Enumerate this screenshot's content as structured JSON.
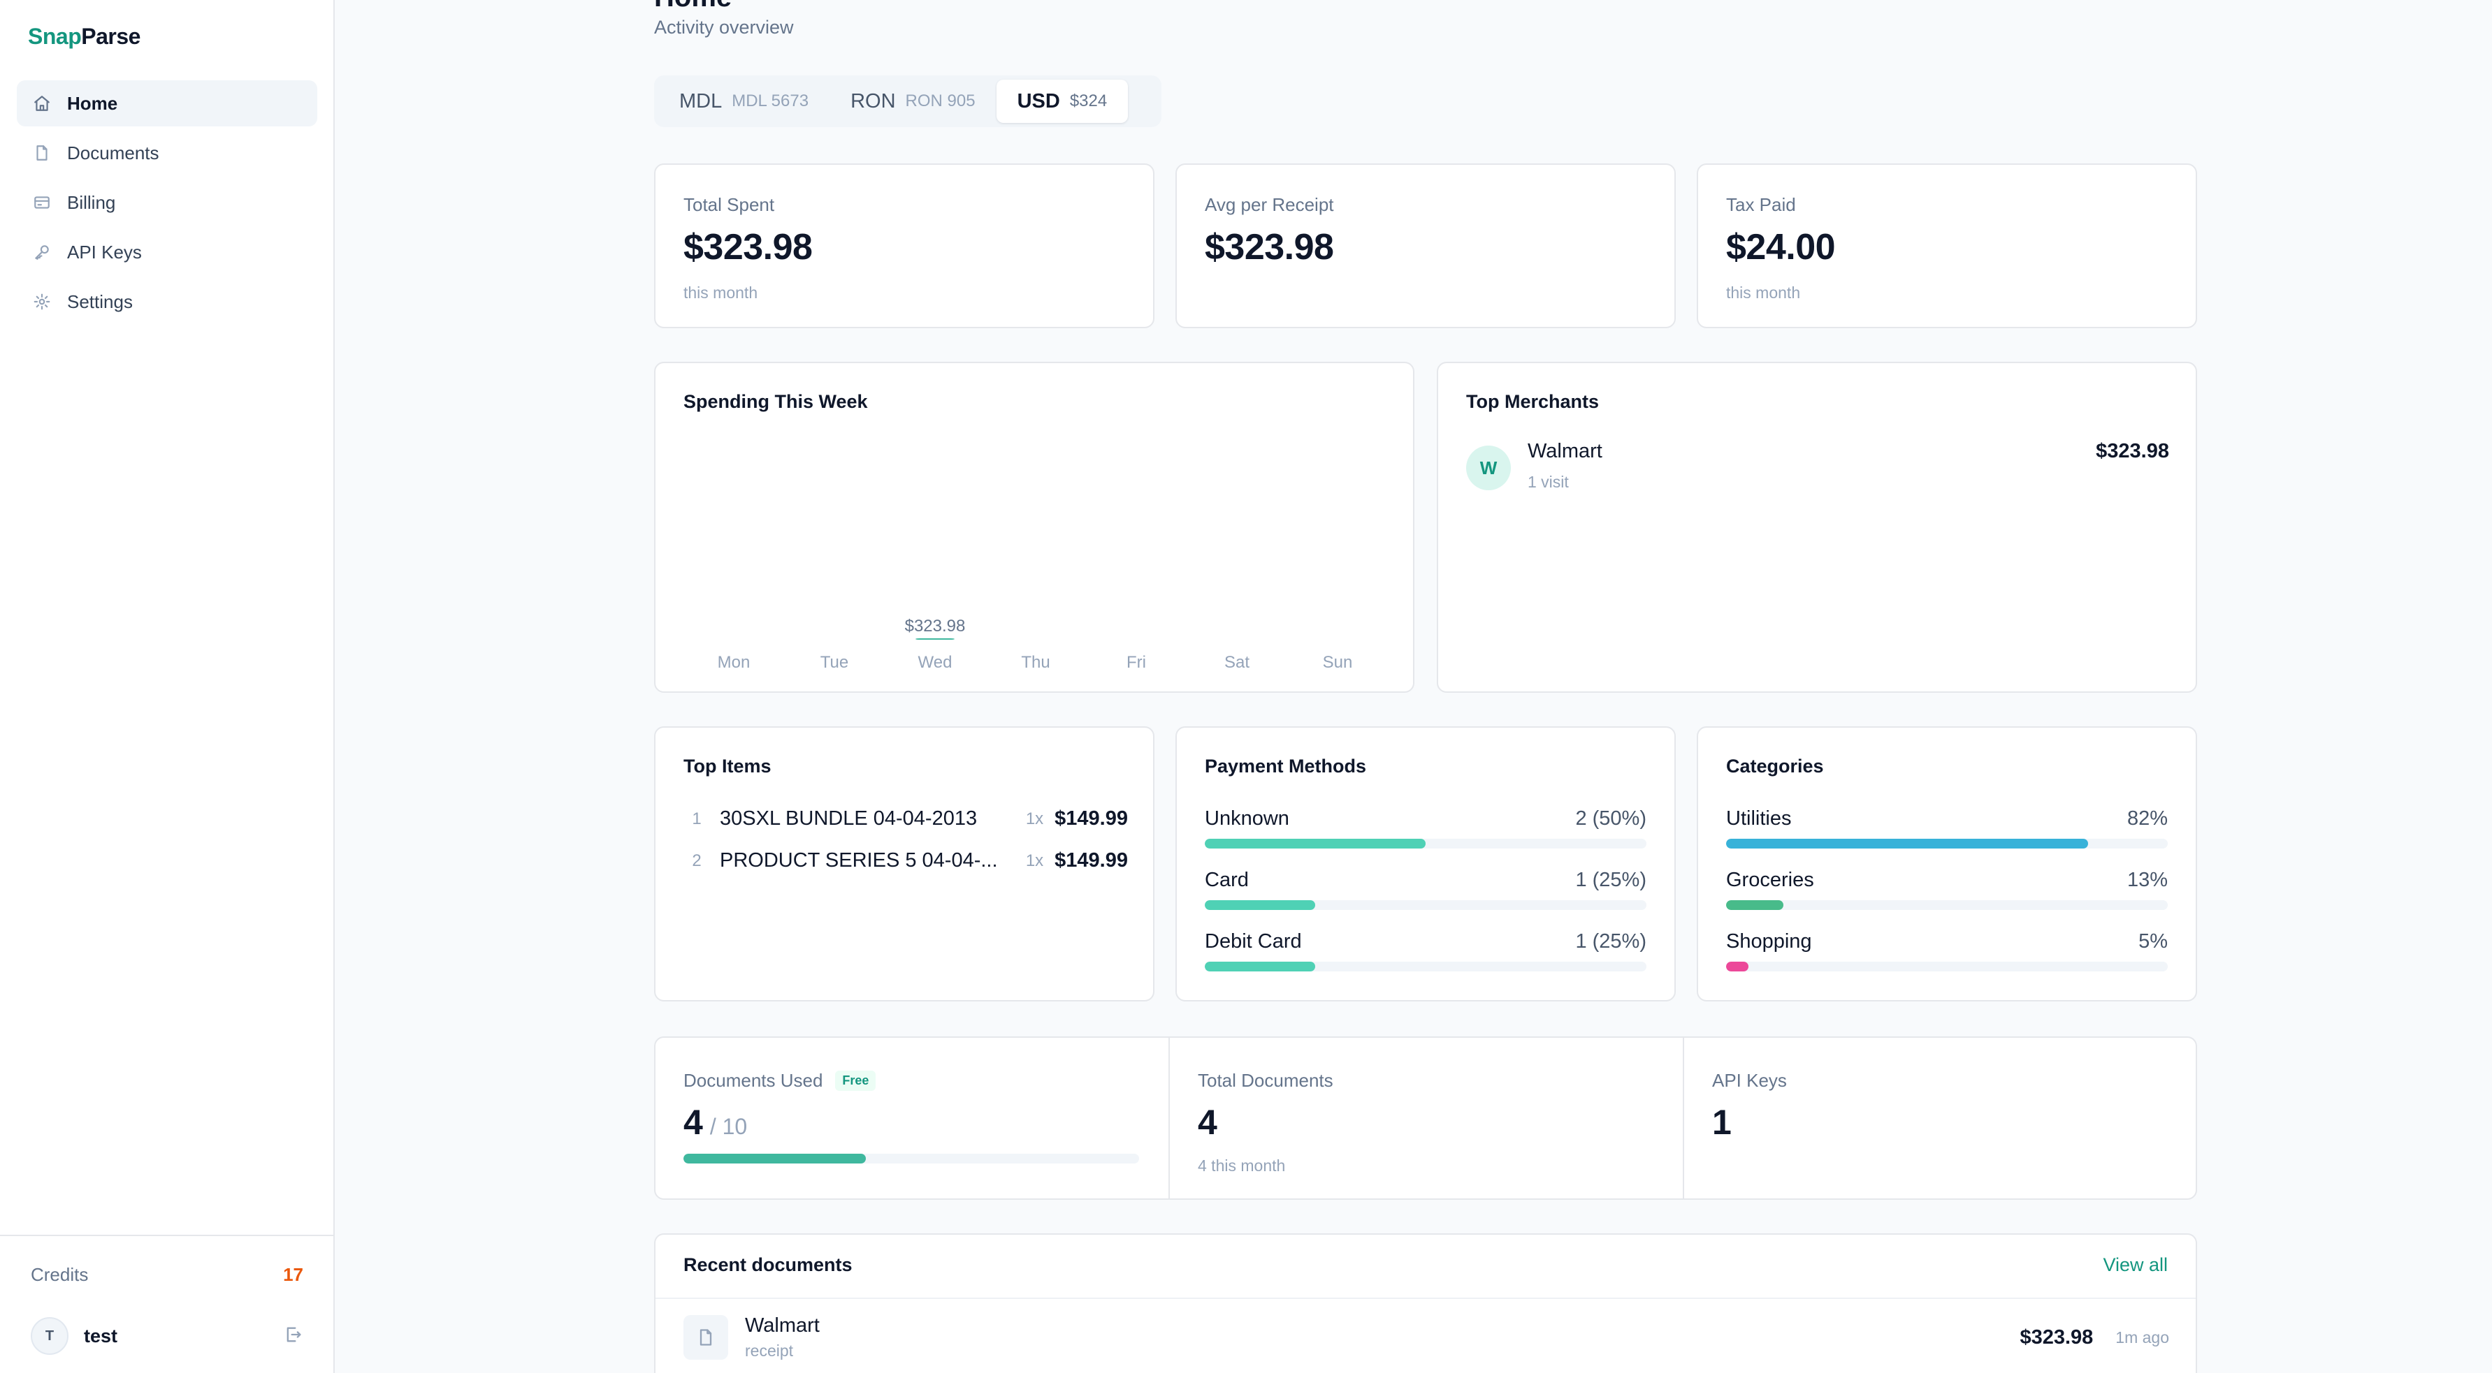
{
  "app": {
    "logo_primary": "Snap",
    "logo_secondary": "Parse"
  },
  "sidebar": {
    "items": [
      {
        "label": "Home",
        "icon": "home-icon",
        "active": true
      },
      {
        "label": "Documents",
        "icon": "document-icon",
        "active": false
      },
      {
        "label": "Billing",
        "icon": "credit-card-icon",
        "active": false
      },
      {
        "label": "API Keys",
        "icon": "key-icon",
        "active": false
      },
      {
        "label": "Settings",
        "icon": "gear-icon",
        "active": false
      }
    ],
    "credits_label": "Credits",
    "credits_count": "17",
    "user": {
      "initial": "T",
      "name": "test"
    }
  },
  "header": {
    "title": "Home",
    "subtitle": "Activity overview"
  },
  "currency_tabs": [
    {
      "code": "MDL",
      "amount": "MDL 5673",
      "active": false
    },
    {
      "code": "RON",
      "amount": "RON 905",
      "active": false
    },
    {
      "code": "USD",
      "amount": "$324",
      "active": true
    }
  ],
  "stats": [
    {
      "label": "Total Spent",
      "value": "$323.98",
      "sub": "this month"
    },
    {
      "label": "Avg per Receipt",
      "value": "$323.98",
      "sub": ""
    },
    {
      "label": "Tax Paid",
      "value": "$24.00",
      "sub": "this month"
    }
  ],
  "spending_week": {
    "title": "Spending This Week"
  },
  "chart_data": {
    "type": "bar",
    "title": "Spending This Week",
    "categories": [
      "Mon",
      "Tue",
      "Wed",
      "Thu",
      "Fri",
      "Sat",
      "Sun"
    ],
    "values": [
      0,
      0,
      323.98,
      0,
      0,
      0,
      0
    ],
    "data_labels": [
      "",
      "",
      "$323.98",
      "",
      "",
      "",
      ""
    ],
    "xlabel": "",
    "ylabel": "",
    "grid": false,
    "bar_color": "#3fb89e"
  },
  "top_merchants": {
    "title": "Top Merchants",
    "items": [
      {
        "initial": "W",
        "name": "Walmart",
        "visits": "1 visit",
        "amount": "$323.98"
      }
    ]
  },
  "top_items": {
    "title": "Top Items",
    "items": [
      {
        "rank": "1",
        "name": "30SXL BUNDLE 04-04-2013",
        "qty": "1x",
        "price": "$149.99"
      },
      {
        "rank": "2",
        "name": "PRODUCT SERIES 5 04-04-...",
        "qty": "1x",
        "price": "$149.99"
      }
    ]
  },
  "payment_methods": {
    "title": "Payment Methods",
    "items": [
      {
        "label": "Unknown",
        "value": "2 (50%)",
        "fraction": 0.5,
        "color": "#4fd1b5"
      },
      {
        "label": "Card",
        "value": "1 (25%)",
        "fraction": 0.25,
        "color": "#4fd1b5"
      },
      {
        "label": "Debit Card",
        "value": "1 (25%)",
        "fraction": 0.25,
        "color": "#4fd1b5"
      }
    ]
  },
  "categories": {
    "title": "Categories",
    "items": [
      {
        "label": "Utilities",
        "value": "82%",
        "fraction": 0.82,
        "color": "#38b2d9"
      },
      {
        "label": "Groceries",
        "value": "13%",
        "fraction": 0.13,
        "color": "#48bb8a"
      },
      {
        "label": "Shopping",
        "value": "5%",
        "fraction": 0.05,
        "color": "#ec4899"
      }
    ]
  },
  "usage": {
    "documents_used_label": "Documents Used",
    "plan_badge": "Free",
    "documents_used": "4",
    "documents_limit": "/ 10",
    "documents_used_fraction": 0.4,
    "total_documents_label": "Total Documents",
    "total_documents": "4",
    "total_documents_sub": "4 this month",
    "api_keys_label": "API Keys",
    "api_keys": "1"
  },
  "recent_documents": {
    "title": "Recent documents",
    "view_all": "View all",
    "items": [
      {
        "name": "Walmart",
        "type": "receipt",
        "amount": "$323.98",
        "time": "1m ago"
      }
    ]
  }
}
